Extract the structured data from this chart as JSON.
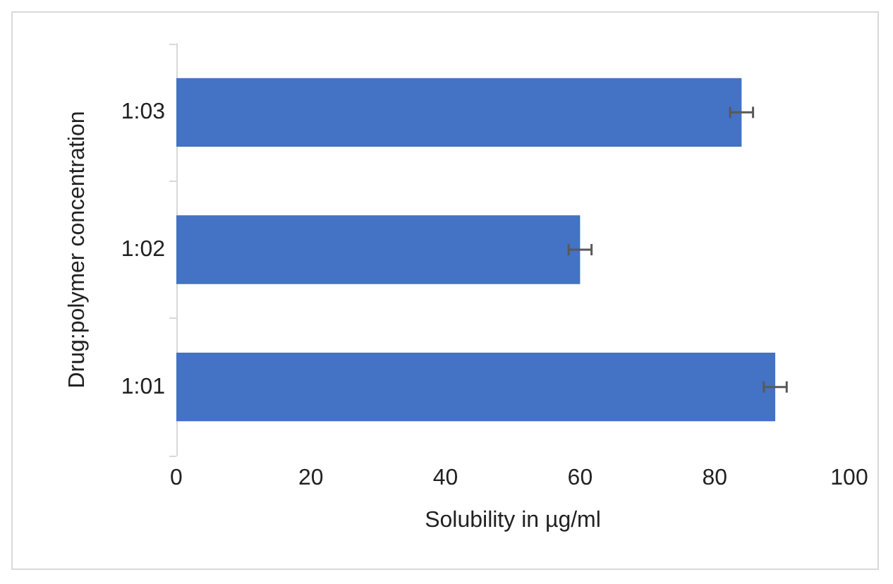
{
  "chart_data": {
    "type": "bar",
    "orientation": "horizontal",
    "xlabel": "Solubility in µg/ml",
    "ylabel": "Drug:polymer concentration",
    "categories": [
      "1:03",
      "1:02",
      "1:01"
    ],
    "values": [
      84,
      60,
      89
    ],
    "errors": [
      1.7,
      1.7,
      1.7
    ],
    "color": "#4472c4",
    "xlim": [
      0,
      100
    ],
    "xticks": [
      0,
      20,
      40,
      60,
      80,
      100
    ],
    "grid": false
  }
}
